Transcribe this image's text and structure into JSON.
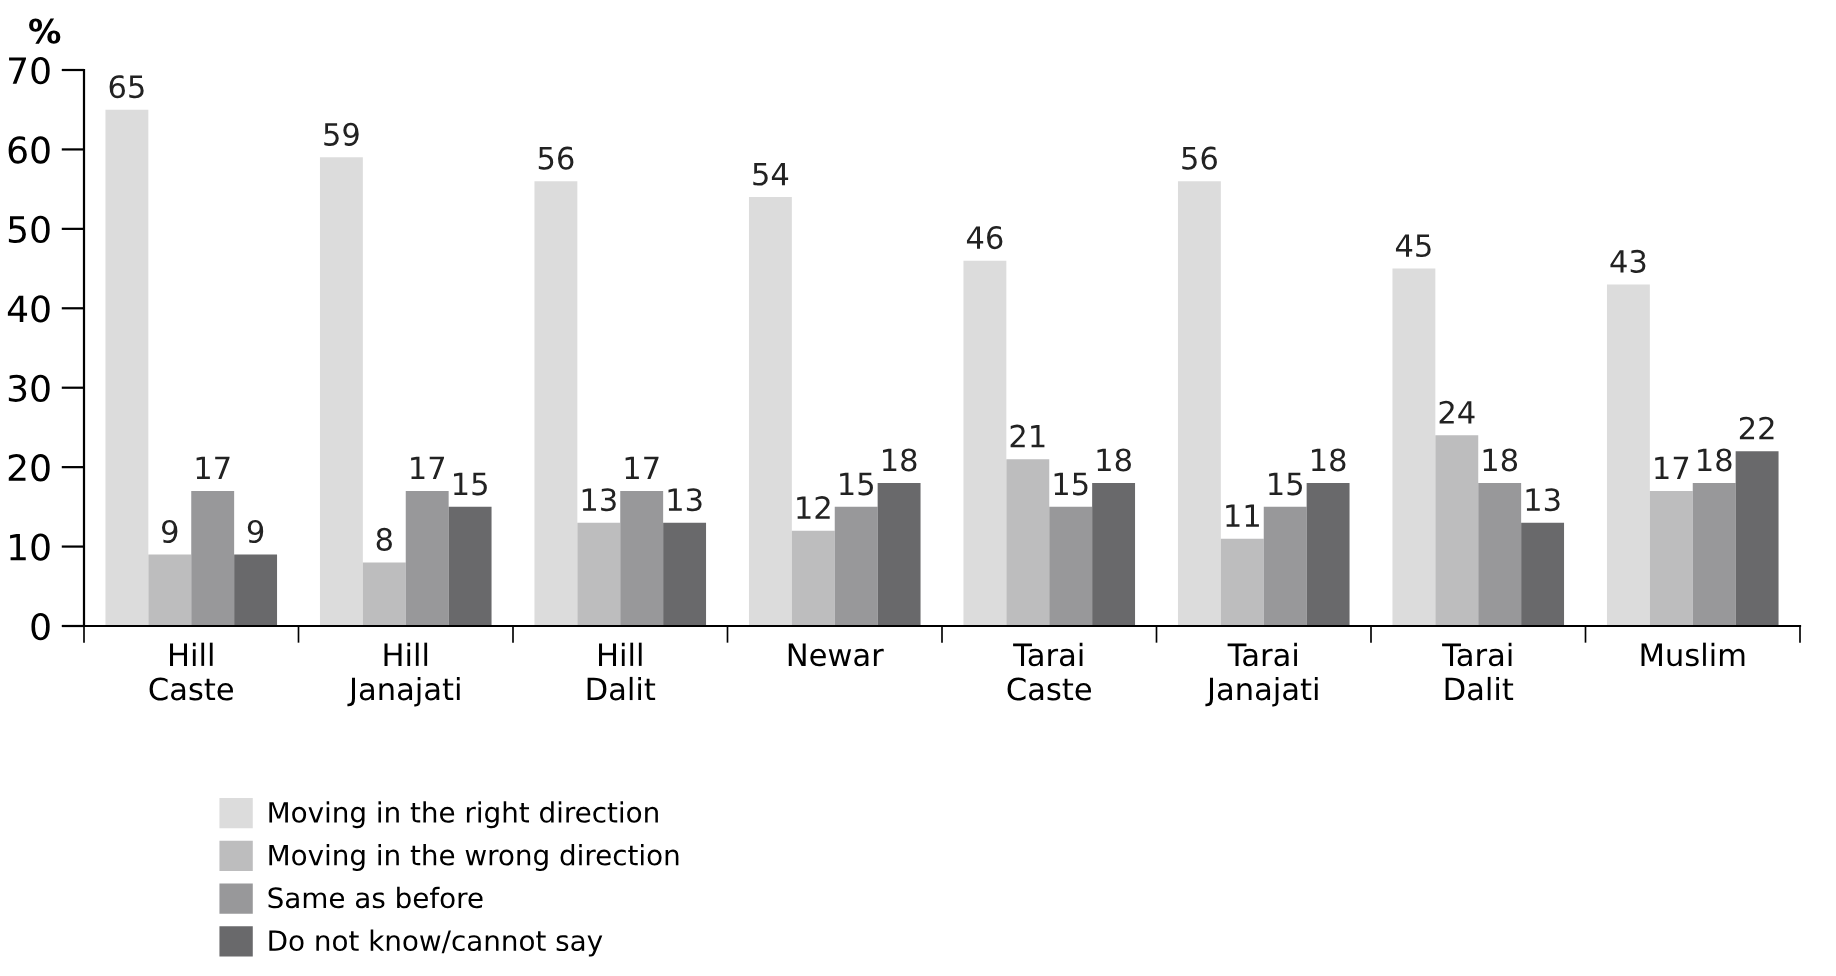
{
  "chart_data": {
    "type": "bar",
    "ylabel": "%",
    "categories": [
      "Hill\nCaste",
      "Hill\nJanajati",
      "Hill\nDalit",
      "Newar",
      "Tarai\nCaste",
      "Tarai\nJanajati",
      "Tarai\nDalit",
      "Muslim"
    ],
    "series": [
      {
        "name": "Moving in the right direction",
        "color": "#dcdcdc",
        "values": [
          65,
          59,
          56,
          54,
          46,
          56,
          45,
          43
        ]
      },
      {
        "name": "Moving in the wrong direction",
        "color": "#bdbdbe",
        "values": [
          9,
          8,
          13,
          12,
          21,
          11,
          24,
          17
        ]
      },
      {
        "name": "Same as before",
        "color": "#98989a",
        "values": [
          17,
          17,
          17,
          15,
          15,
          15,
          18,
          18
        ]
      },
      {
        "name": "Do not know/cannot say",
        "color": "#69696b",
        "values": [
          9,
          15,
          13,
          18,
          18,
          18,
          13,
          22
        ]
      }
    ],
    "ylim": [
      0,
      70
    ],
    "yticks": [
      0,
      10,
      20,
      30,
      40,
      50,
      60,
      70
    ],
    "data_labels": true,
    "grid": false,
    "legend": "bottom left"
  }
}
